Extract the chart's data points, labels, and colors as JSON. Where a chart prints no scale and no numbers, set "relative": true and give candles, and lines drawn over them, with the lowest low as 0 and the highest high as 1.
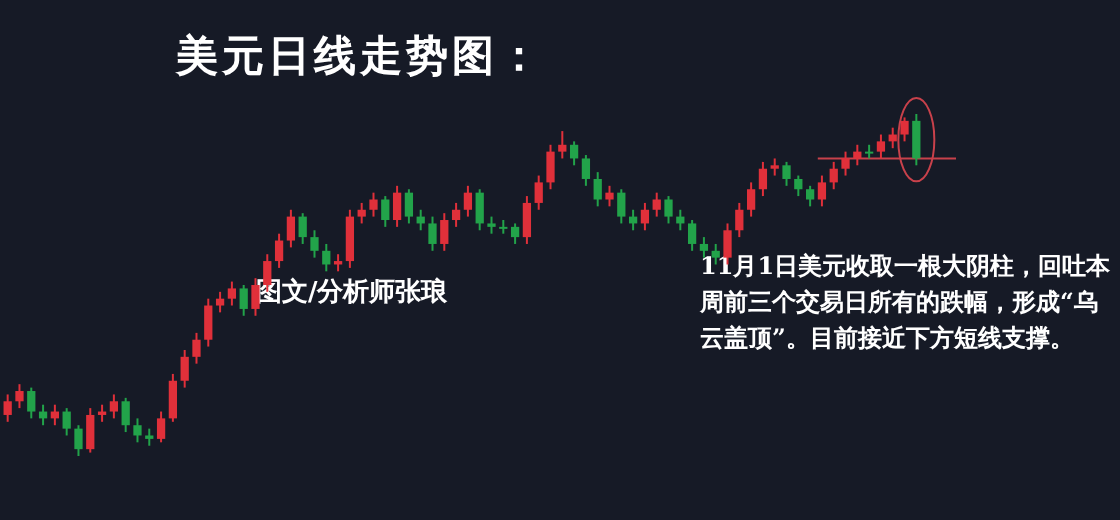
{
  "chart_data": {
    "type": "candlestick",
    "relative": true,
    "title": "美元日线走势图：",
    "annotations": [
      "图文/分析师张琅",
      "11月1日美元收取一根大阴柱，回吐本周前三个交易日所有的跌幅，形成“乌云盖顶”。目前接近下方短线支撑。"
    ],
    "categories": [
      null,
      null,
      null,
      null,
      null,
      null,
      null,
      null,
      null,
      null,
      null,
      null,
      null,
      null,
      null,
      null,
      null,
      null,
      null,
      null,
      null,
      null,
      null,
      null,
      null,
      null,
      null,
      null,
      null,
      null,
      null,
      null,
      null,
      null,
      null,
      null,
      null,
      null,
      null,
      null,
      null,
      null,
      null,
      null,
      null,
      null,
      null,
      null,
      null,
      null,
      null,
      null,
      null,
      null,
      null,
      null,
      null,
      null,
      null,
      null,
      null,
      null,
      null,
      null,
      null,
      null,
      null,
      null,
      null,
      null,
      null,
      null,
      null,
      null,
      null,
      null,
      null,
      null
    ],
    "ohlc": [
      [
        0.12,
        0.18,
        0.1,
        0.16
      ],
      [
        0.16,
        0.21,
        0.14,
        0.19
      ],
      [
        0.19,
        0.2,
        0.11,
        0.13
      ],
      [
        0.13,
        0.15,
        0.09,
        0.11
      ],
      [
        0.11,
        0.15,
        0.09,
        0.13
      ],
      [
        0.13,
        0.14,
        0.06,
        0.08
      ],
      [
        0.08,
        0.09,
        0.0,
        0.02
      ],
      [
        0.02,
        0.14,
        0.01,
        0.12
      ],
      [
        0.12,
        0.15,
        0.1,
        0.13
      ],
      [
        0.13,
        0.18,
        0.11,
        0.16
      ],
      [
        0.16,
        0.17,
        0.07,
        0.09
      ],
      [
        0.09,
        0.11,
        0.04,
        0.06
      ],
      [
        0.06,
        0.08,
        0.03,
        0.05
      ],
      [
        0.05,
        0.13,
        0.04,
        0.11
      ],
      [
        0.11,
        0.24,
        0.1,
        0.22
      ],
      [
        0.22,
        0.31,
        0.2,
        0.29
      ],
      [
        0.29,
        0.36,
        0.27,
        0.34
      ],
      [
        0.34,
        0.46,
        0.32,
        0.44
      ],
      [
        0.44,
        0.48,
        0.42,
        0.46
      ],
      [
        0.46,
        0.51,
        0.44,
        0.49
      ],
      [
        0.49,
        0.5,
        0.41,
        0.43
      ],
      [
        0.43,
        0.52,
        0.41,
        0.5
      ],
      [
        0.5,
        0.59,
        0.48,
        0.57
      ],
      [
        0.57,
        0.65,
        0.55,
        0.63
      ],
      [
        0.63,
        0.72,
        0.61,
        0.7
      ],
      [
        0.7,
        0.71,
        0.62,
        0.64
      ],
      [
        0.64,
        0.66,
        0.58,
        0.6
      ],
      [
        0.6,
        0.62,
        0.54,
        0.56
      ],
      [
        0.56,
        0.59,
        0.54,
        0.57
      ],
      [
        0.57,
        0.72,
        0.55,
        0.7
      ],
      [
        0.7,
        0.74,
        0.68,
        0.72
      ],
      [
        0.72,
        0.77,
        0.7,
        0.75
      ],
      [
        0.75,
        0.76,
        0.67,
        0.69
      ],
      [
        0.69,
        0.79,
        0.67,
        0.77
      ],
      [
        0.77,
        0.78,
        0.68,
        0.7
      ],
      [
        0.7,
        0.72,
        0.66,
        0.68
      ],
      [
        0.68,
        0.7,
        0.6,
        0.62
      ],
      [
        0.62,
        0.71,
        0.6,
        0.69
      ],
      [
        0.69,
        0.74,
        0.67,
        0.72
      ],
      [
        0.72,
        0.79,
        0.7,
        0.77
      ],
      [
        0.77,
        0.78,
        0.66,
        0.68
      ],
      [
        0.68,
        0.7,
        0.65,
        0.67
      ],
      [
        0.67,
        0.69,
        0.65,
        0.67
      ],
      [
        0.67,
        0.68,
        0.62,
        0.64
      ],
      [
        0.64,
        0.76,
        0.62,
        0.74
      ],
      [
        0.74,
        0.82,
        0.72,
        0.8
      ],
      [
        0.8,
        0.91,
        0.78,
        0.89
      ],
      [
        0.89,
        0.95,
        0.87,
        0.91
      ],
      [
        0.91,
        0.92,
        0.85,
        0.87
      ],
      [
        0.87,
        0.88,
        0.79,
        0.81
      ],
      [
        0.81,
        0.83,
        0.73,
        0.75
      ],
      [
        0.75,
        0.79,
        0.73,
        0.77
      ],
      [
        0.77,
        0.78,
        0.68,
        0.7
      ],
      [
        0.7,
        0.72,
        0.66,
        0.68
      ],
      [
        0.68,
        0.74,
        0.66,
        0.72
      ],
      [
        0.72,
        0.77,
        0.7,
        0.75
      ],
      [
        0.75,
        0.76,
        0.68,
        0.7
      ],
      [
        0.7,
        0.72,
        0.66,
        0.68
      ],
      [
        0.68,
        0.69,
        0.6,
        0.62
      ],
      [
        0.62,
        0.64,
        0.58,
        0.6
      ],
      [
        0.6,
        0.62,
        0.56,
        0.58
      ],
      [
        0.58,
        0.68,
        0.56,
        0.66
      ],
      [
        0.66,
        0.74,
        0.64,
        0.72
      ],
      [
        0.72,
        0.8,
        0.7,
        0.78
      ],
      [
        0.78,
        0.86,
        0.76,
        0.84
      ],
      [
        0.84,
        0.87,
        0.82,
        0.85
      ],
      [
        0.85,
        0.86,
        0.79,
        0.81
      ],
      [
        0.81,
        0.82,
        0.76,
        0.78
      ],
      [
        0.78,
        0.79,
        0.73,
        0.75
      ],
      [
        0.75,
        0.82,
        0.73,
        0.8
      ],
      [
        0.8,
        0.86,
        0.78,
        0.84
      ],
      [
        0.84,
        0.89,
        0.82,
        0.87
      ],
      [
        0.87,
        0.91,
        0.85,
        0.89
      ],
      [
        0.89,
        0.91,
        0.87,
        0.89
      ],
      [
        0.89,
        0.94,
        0.87,
        0.92
      ],
      [
        0.92,
        0.96,
        0.9,
        0.94
      ],
      [
        0.94,
        0.99,
        0.92,
        0.98
      ],
      [
        0.98,
        1.0,
        0.85,
        0.87
      ]
    ],
    "colors": [
      "#e0303a",
      "#e0303a",
      "#22a34a",
      "#22a34a",
      "#e0303a",
      "#22a34a",
      "#22a34a",
      "#e0303a",
      "#e0303a",
      "#e0303a",
      "#22a34a",
      "#22a34a",
      "#22a34a",
      "#e0303a",
      "#e0303a",
      "#e0303a",
      "#e0303a",
      "#e0303a",
      "#e0303a",
      "#e0303a",
      "#22a34a",
      "#e0303a",
      "#e0303a",
      "#e0303a",
      "#e0303a",
      "#22a34a",
      "#22a34a",
      "#22a34a",
      "#e0303a",
      "#e0303a",
      "#e0303a",
      "#e0303a",
      "#22a34a",
      "#e0303a",
      "#22a34a",
      "#22a34a",
      "#22a34a",
      "#e0303a",
      "#e0303a",
      "#e0303a",
      "#22a34a",
      "#22a34a",
      "#22a34a",
      "#22a34a",
      "#e0303a",
      "#e0303a",
      "#e0303a",
      "#e0303a",
      "#22a34a",
      "#22a34a",
      "#22a34a",
      "#e0303a",
      "#22a34a",
      "#22a34a",
      "#e0303a",
      "#e0303a",
      "#22a34a",
      "#22a34a",
      "#22a34a",
      "#22a34a",
      "#22a34a",
      "#e0303a",
      "#e0303a",
      "#e0303a",
      "#e0303a",
      "#e0303a",
      "#22a34a",
      "#22a34a",
      "#22a34a",
      "#e0303a",
      "#e0303a",
      "#e0303a",
      "#e0303a",
      "#22a34a",
      "#e0303a",
      "#e0303a",
      "#e0303a",
      "#22a34a"
    ],
    "ref_lines": [
      {
        "axis": "y",
        "value": 0.87,
        "color": "#c8414b"
      }
    ]
  }
}
